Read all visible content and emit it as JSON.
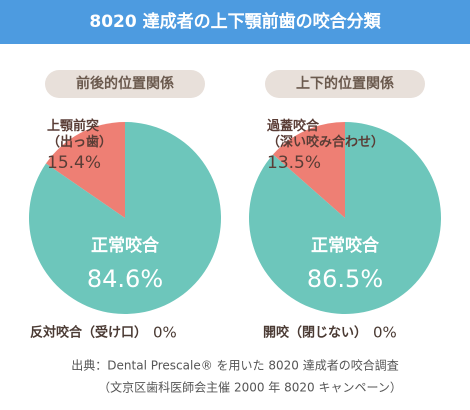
{
  "title": "8020 達成者の上下顎前歯の咬合分類",
  "chart_data": [
    {
      "type": "pie",
      "subtitle": "前後的位置関係",
      "categories": [
        "上顎前突（出っ歯）",
        "正常咬合",
        "反対咬合（受け口）"
      ],
      "values": [
        15.4,
        84.6,
        0
      ],
      "value_labels": [
        "15.4%",
        "84.6%",
        "0%"
      ],
      "colors": [
        "#ee7f74",
        "#6dc6bb",
        "#9ad0c8"
      ]
    },
    {
      "type": "pie",
      "subtitle": "上下的位置関係",
      "categories": [
        "過蓋咬合（深い咬み合わせ）",
        "正常咬合",
        "開咬（閉じない）"
      ],
      "values": [
        13.5,
        86.5,
        0
      ],
      "value_labels": [
        "13.5%",
        "86.5%",
        "0%"
      ],
      "colors": [
        "#ee7f74",
        "#6dc6bb",
        "#9ad0c8"
      ]
    }
  ],
  "source": [
    "出典：Dental Prescale® を用いた 8020 達成者の咬合調査",
    "（文京区歯科医師会主催 2000 年 8020 キャンペーン）"
  ]
}
